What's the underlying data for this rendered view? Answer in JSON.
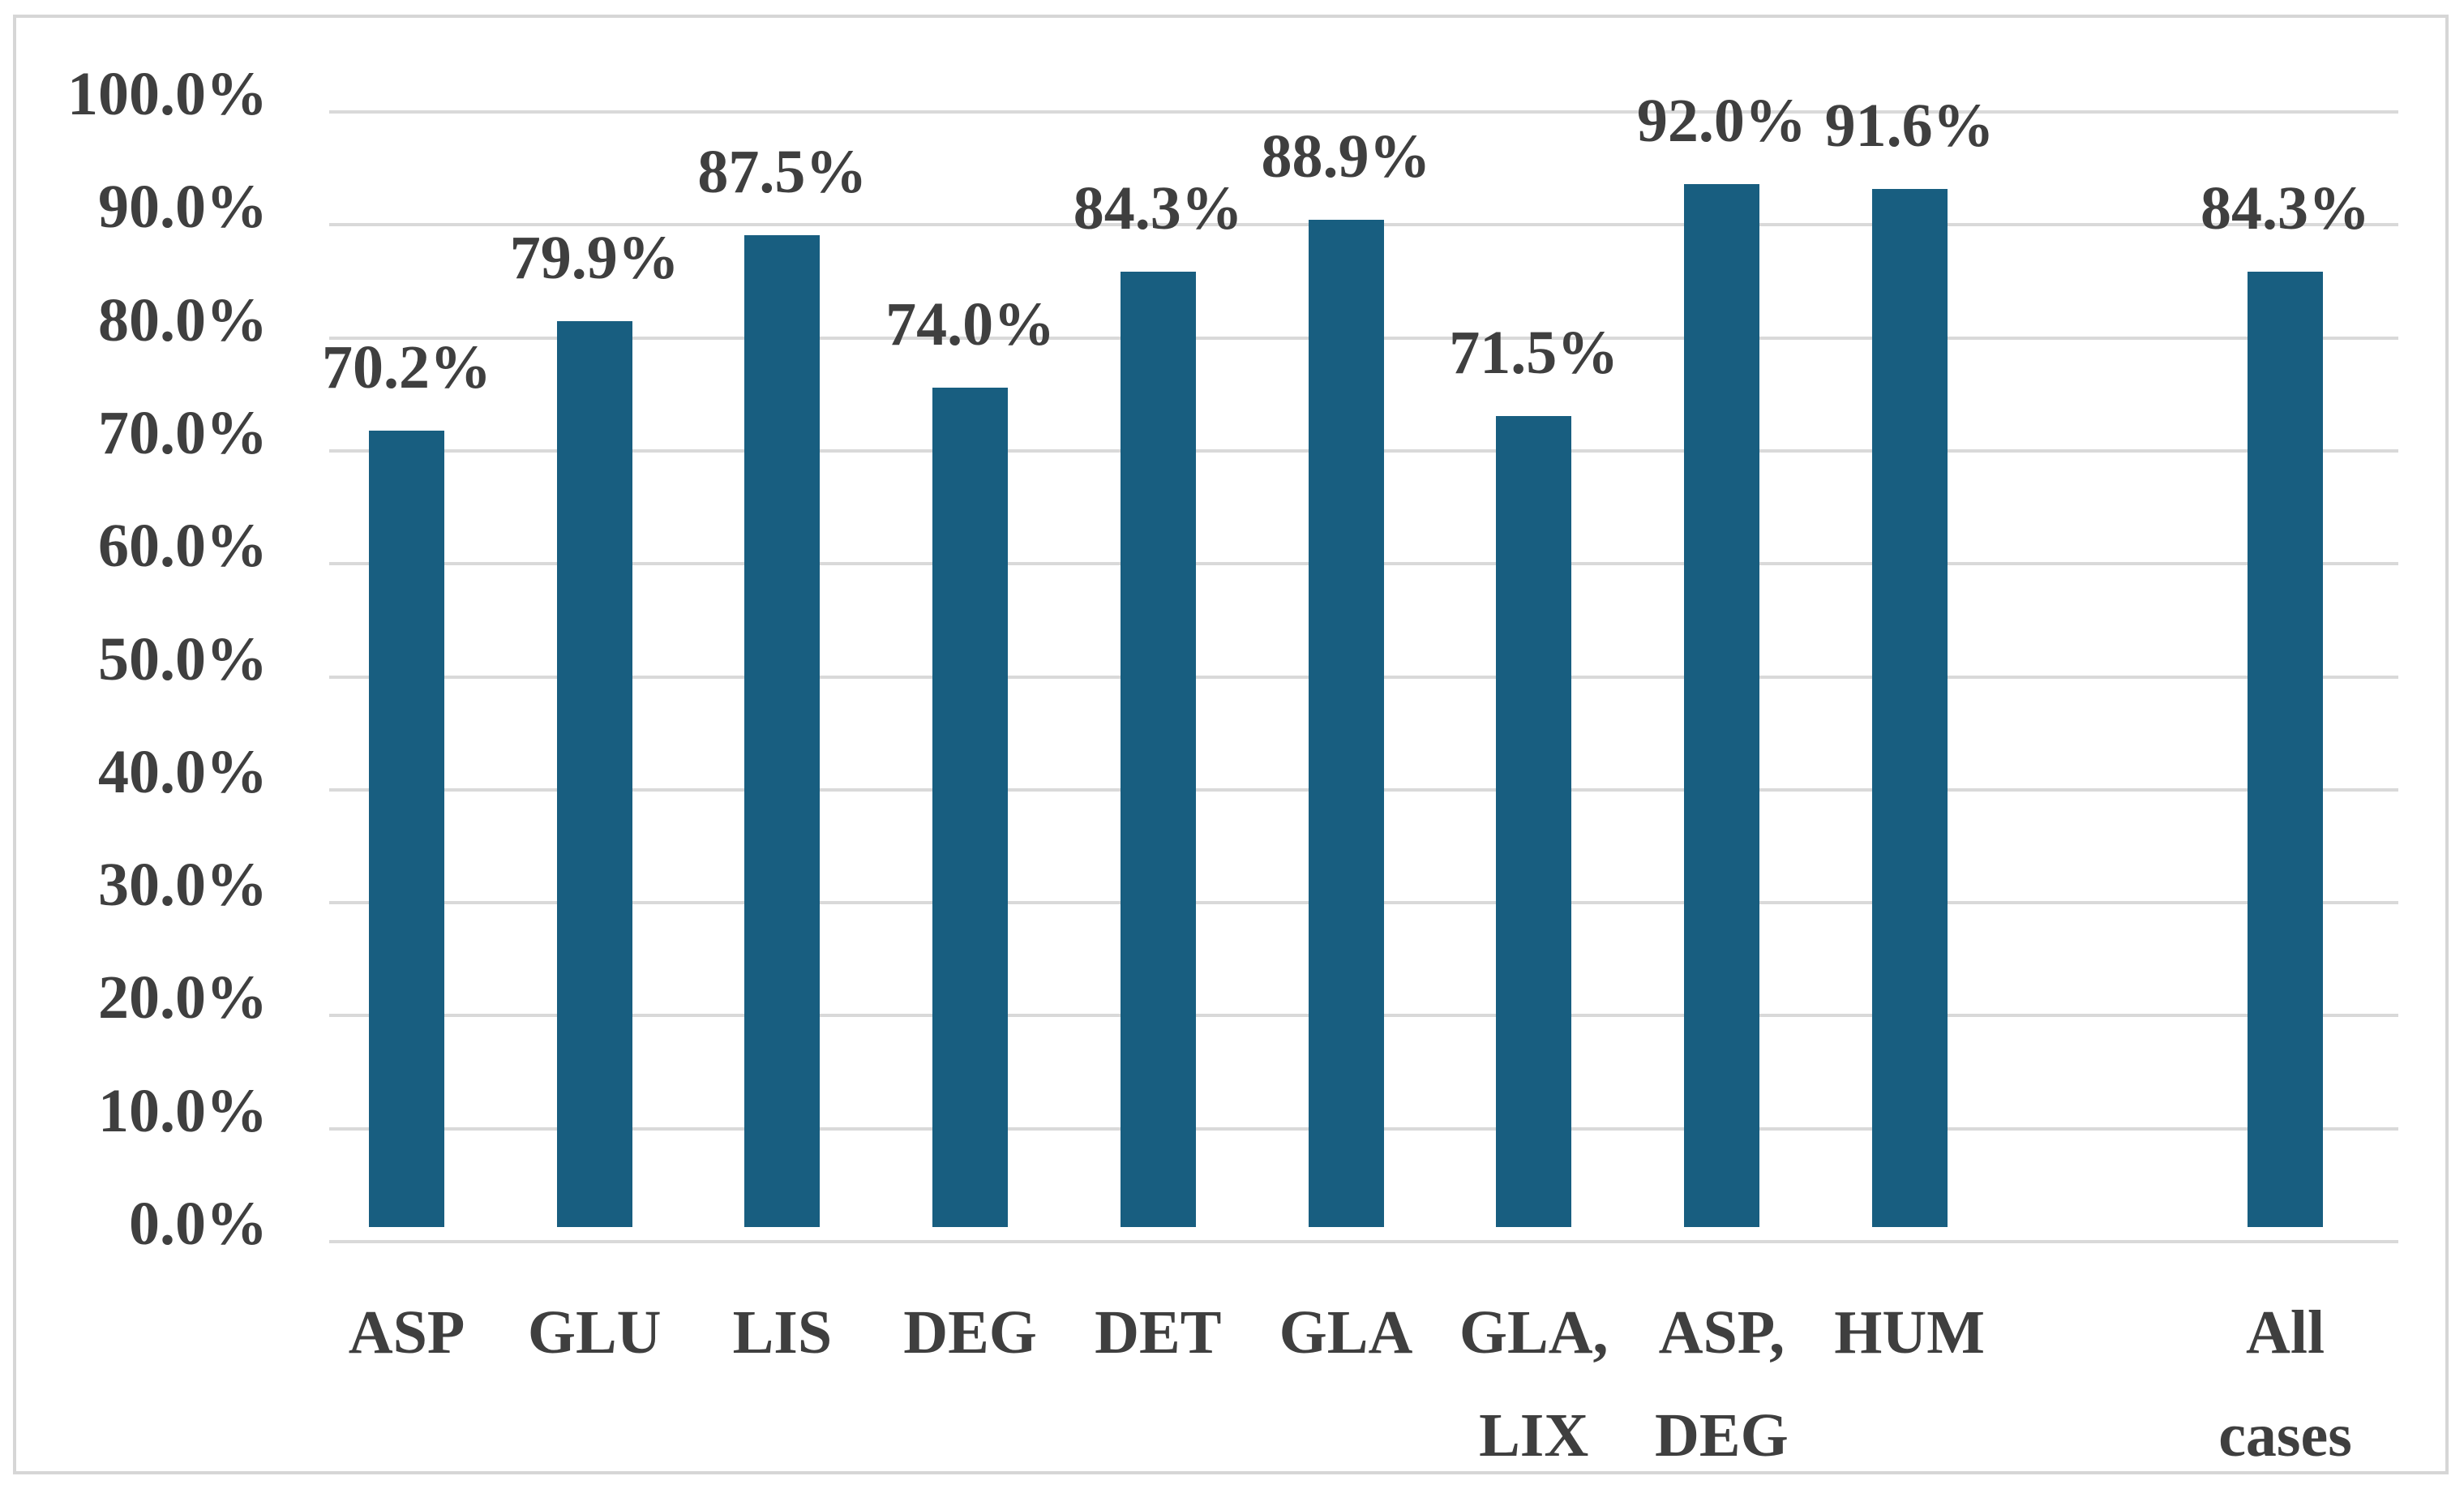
{
  "chart_data": {
    "type": "bar",
    "title": "",
    "xlabel": "",
    "ylabel": "",
    "categories": [
      "ASP",
      "GLU",
      "LIS",
      "DEG",
      "DET",
      "GLA",
      "GLA, LIX",
      "ASP, DEG",
      "HUM",
      "All cases"
    ],
    "category_lines": [
      [
        "ASP"
      ],
      [
        "GLU"
      ],
      [
        "LIS"
      ],
      [
        "DEG"
      ],
      [
        "DET"
      ],
      [
        "GLA"
      ],
      [
        "GLA,",
        "LIX"
      ],
      [
        "ASP,",
        "DEG"
      ],
      [
        "HUM"
      ],
      [
        "All",
        "cases"
      ]
    ],
    "values": [
      70.2,
      79.9,
      87.5,
      74.0,
      84.3,
      88.9,
      71.5,
      92.0,
      91.6,
      84.3
    ],
    "value_labels": [
      "70.2%",
      "79.9%",
      "87.5%",
      "74.0%",
      "84.3%",
      "88.9%",
      "71.5%",
      "92.0%",
      "91.6%",
      "84.3%"
    ],
    "slots": [
      0,
      1,
      2,
      3,
      4,
      5,
      6,
      7,
      8,
      10
    ],
    "y_ticks": [
      "0.0%",
      "10.0%",
      "20.0%",
      "30.0%",
      "40.0%",
      "50.0%",
      "60.0%",
      "70.0%",
      "80.0%",
      "90.0%",
      "100.0%"
    ],
    "ylim": [
      0,
      100
    ],
    "grid": true,
    "legend": false,
    "colors": {
      "bar": "#185E80",
      "gridline": "#D9D9D9",
      "frame_border": "#D6D6D6",
      "text": "#3F3F3F",
      "background": "#FFFFFF"
    }
  }
}
